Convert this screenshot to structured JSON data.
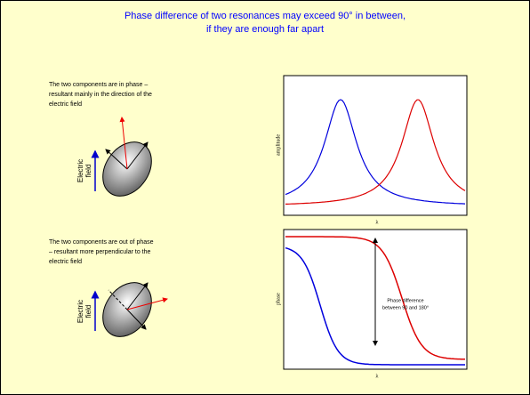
{
  "title": [
    "Phase difference of two resonances may exceed 90° in between,",
    "if they are enough far apart"
  ],
  "panels": [
    {
      "text": [
        "The two components are in phase –",
        "resultant mainly in the direction of the",
        "electric field"
      ],
      "field_label": [
        "Electric",
        "field"
      ]
    },
    {
      "text": [
        "The two components are out of phase",
        "– resultant more perpendicular to the",
        "electric field"
      ],
      "field_label": [
        "Electric",
        "field"
      ]
    }
  ],
  "plots": [
    {
      "y_label": "amplitude",
      "x_label": "λ"
    },
    {
      "y_label": "phase",
      "x_label": "λ",
      "annotation": [
        "Phase difference",
        "between 90 and 180°"
      ]
    }
  ]
}
